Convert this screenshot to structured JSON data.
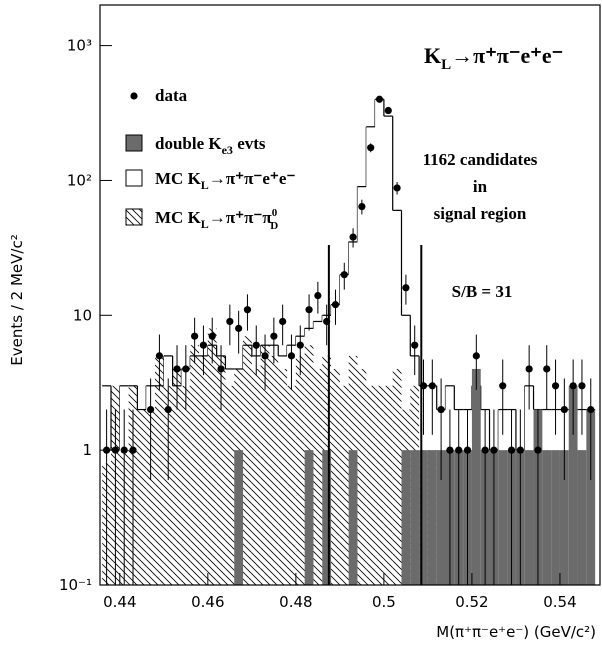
{
  "chart_data": {
    "type": "histogram",
    "title": [
      "K",
      "L",
      "→π⁺π⁻e⁺e⁻"
    ],
    "xlabel": "M(π⁺π⁻e⁺e⁻) (GeV/c²)",
    "ylabel": "Events / 2 MeV/c²",
    "annotations": [
      "1162 candidates",
      "in",
      "signal region",
      "S/B = 31"
    ],
    "log_y": true,
    "xlim": [
      0.4355,
      0.5491
    ],
    "ylim": [
      0.1,
      2000
    ],
    "xticks": [
      0.44,
      0.46,
      0.48,
      0.5,
      0.52,
      0.54
    ],
    "yticks": [
      {
        "value": 0.1,
        "label": "10⁻¹"
      },
      1,
      10,
      {
        "value": 100,
        "label": "10²"
      },
      {
        "value": 1000,
        "label": "10³"
      }
    ],
    "bins": [
      0.436,
      0.438,
      0.44,
      0.442,
      0.444,
      0.446,
      0.448,
      0.45,
      0.452,
      0.454,
      0.456,
      0.458,
      0.46,
      0.462,
      0.464,
      0.466,
      0.468,
      0.47,
      0.472,
      0.474,
      0.476,
      0.478,
      0.48,
      0.482,
      0.484,
      0.486,
      0.488,
      0.49,
      0.492,
      0.494,
      0.496,
      0.498,
      0.5,
      0.502,
      0.504,
      0.506,
      0.508,
      0.51,
      0.512,
      0.514,
      0.516,
      0.518,
      0.52,
      0.522,
      0.524,
      0.526,
      0.528,
      0.53,
      0.532,
      0.534,
      0.536,
      0.538,
      0.54,
      0.542,
      0.544,
      0.546,
      0.548
    ],
    "signal_region": [
      0.4875,
      0.5085
    ],
    "series": [
      {
        "name": [
          "MC K",
          "L",
          "→π⁺π⁻e⁺e⁻"
        ],
        "style": "outline",
        "color": "#ffffff",
        "values": [
          3,
          1,
          3,
          3,
          2,
          3,
          3,
          5,
          3,
          4,
          5,
          5,
          6,
          5,
          4,
          4,
          6,
          5,
          6,
          6,
          5,
          6,
          7,
          8,
          9,
          10,
          12,
          20,
          35,
          90,
          250,
          400,
          300,
          60,
          10,
          5,
          3,
          3,
          2,
          3,
          2,
          2,
          3,
          2,
          1,
          2,
          2,
          1,
          3,
          2,
          2,
          2,
          2,
          2,
          2,
          2
        ]
      },
      {
        "name": [
          "MC K",
          "L",
          "→π⁺π⁻π",
          "0",
          "D"
        ],
        "style": "hatch",
        "color": "#000000",
        "values": [
          0.8,
          3,
          1,
          3,
          2,
          2,
          5,
          3,
          4,
          3,
          6,
          5,
          8,
          5,
          3,
          4,
          7,
          4,
          6,
          5,
          4,
          3,
          5,
          6,
          4,
          5,
          4,
          3,
          5,
          4,
          3,
          3,
          3,
          4,
          2,
          3,
          1,
          1,
          0,
          0,
          0,
          0,
          0,
          0,
          0,
          0,
          0,
          0,
          0,
          0,
          0,
          0,
          0,
          0,
          0,
          0
        ]
      },
      {
        "name": [
          "double K",
          "e3",
          " evts"
        ],
        "style": "solid",
        "color": "#6b6b6b",
        "values": [
          0,
          0,
          0,
          0,
          0,
          0,
          0,
          0,
          0,
          0,
          0,
          0,
          0,
          0,
          0,
          1,
          0,
          0,
          0,
          0,
          0,
          0,
          0,
          1,
          0,
          1,
          0,
          0,
          1,
          0,
          0,
          0,
          0,
          0,
          1,
          1,
          1,
          1,
          1,
          1,
          1,
          1,
          4,
          1,
          1,
          1,
          1,
          1,
          1,
          2,
          1,
          1,
          1,
          3,
          1,
          2
        ]
      },
      {
        "name": [
          "data"
        ],
        "style": "points",
        "color": "#000000",
        "values": [
          1,
          1,
          1,
          1,
          null,
          2,
          5,
          2,
          4,
          4,
          7,
          6,
          7,
          4,
          9,
          8,
          11,
          6,
          5,
          7,
          9,
          5,
          6,
          11,
          14,
          9,
          12,
          20,
          38,
          64,
          175,
          400,
          330,
          88,
          16,
          6,
          3,
          3,
          2,
          1,
          1,
          1,
          5,
          1,
          1,
          3,
          1,
          1,
          4,
          1,
          4,
          3,
          2,
          3,
          3,
          2
        ],
        "errors": [
          1,
          1,
          1,
          1,
          null,
          1.4,
          2.2,
          1.4,
          2,
          2,
          2.6,
          2.4,
          2.6,
          2,
          3,
          2.8,
          3.3,
          2.4,
          2.2,
          2.6,
          3,
          2.2,
          2.4,
          3.3,
          3.7,
          3,
          3.5,
          4.5,
          6.2,
          8,
          13.2,
          20,
          18.2,
          9.4,
          4,
          2.4,
          1.7,
          1.7,
          1.4,
          1,
          1,
          1,
          2.2,
          1,
          1,
          1.7,
          1,
          1,
          2,
          1,
          2,
          1.7,
          1.4,
          1.7,
          1.7,
          1.4
        ]
      }
    ]
  }
}
